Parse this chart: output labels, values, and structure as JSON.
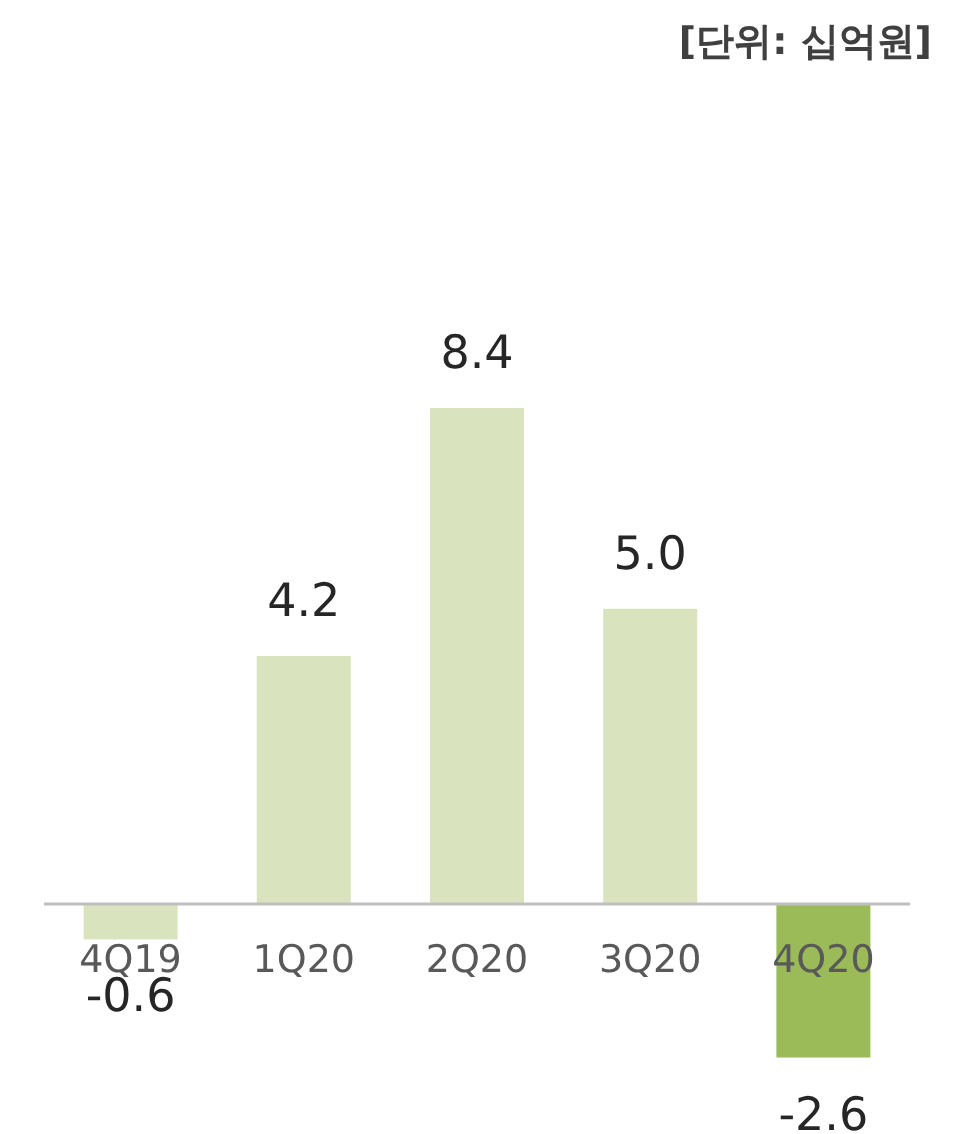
{
  "chart_data": {
    "type": "bar",
    "subtitle": "[단위: 십억원]",
    "categories": [
      "4Q19",
      "1Q20",
      "2Q20",
      "3Q20",
      "4Q20"
    ],
    "values": [
      -0.6,
      4.2,
      8.4,
      5.0,
      -2.6
    ],
    "colors": [
      "#d9e4bf",
      "#d9e4bf",
      "#d9e4bf",
      "#d9e4bf",
      "#9bbb59"
    ],
    "data_labels": true,
    "value_labels": [
      "-0.6",
      "4.2",
      "8.4",
      "5.0",
      "-2.6"
    ]
  }
}
